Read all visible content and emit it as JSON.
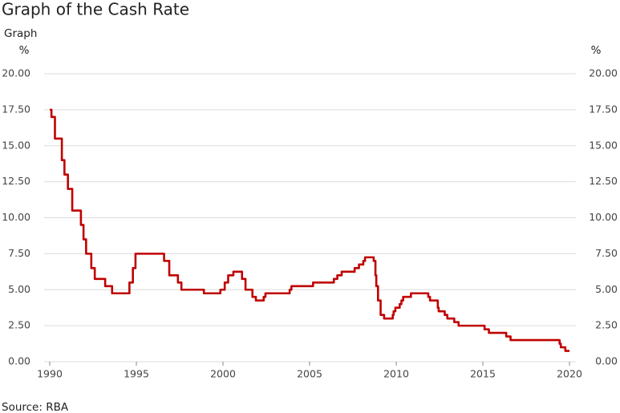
{
  "chart_data": {
    "type": "line",
    "title": "Graph of the Cash Rate",
    "subtitle": "Graph",
    "y_unit": "%",
    "y2_unit": "%",
    "source": "Source: RBA",
    "x": [
      1990,
      1990.1,
      1990.1,
      1990.3,
      1990.3,
      1990.7,
      1990.7,
      1990.85,
      1990.85,
      1991.05,
      1991.05,
      1991.3,
      1991.3,
      1991.8,
      1991.8,
      1991.95,
      1991.95,
      1992.1,
      1992.1,
      1992.4,
      1992.4,
      1992.6,
      1992.6,
      1993.2,
      1993.2,
      1993.6,
      1993.6,
      1994.6,
      1994.6,
      1994.8,
      1994.8,
      1994.95,
      1994.95,
      1996.6,
      1996.6,
      1996.9,
      1996.9,
      1997.4,
      1997.4,
      1997.6,
      1997.6,
      1998.9,
      1998.9,
      1999.85,
      1999.85,
      2000.1,
      2000.1,
      2000.3,
      2000.3,
      2000.6,
      2000.6,
      2001.1,
      2001.1,
      2001.3,
      2001.3,
      2001.7,
      2001.7,
      2001.9,
      2001.9,
      2002.35,
      2002.35,
      2002.45,
      2002.45,
      2003.85,
      2003.85,
      2003.95,
      2003.95,
      2005.2,
      2005.2,
      2006.4,
      2006.4,
      2006.6,
      2006.6,
      2006.85,
      2006.85,
      2007.6,
      2007.6,
      2007.85,
      2007.85,
      2008.1,
      2008.1,
      2008.2,
      2008.2,
      2008.7,
      2008.7,
      2008.8,
      2008.8,
      2008.85,
      2008.85,
      2008.95,
      2008.95,
      2009.1,
      2009.1,
      2009.3,
      2009.3,
      2009.8,
      2009.8,
      2009.85,
      2009.85,
      2009.95,
      2009.95,
      2010.2,
      2010.2,
      2010.3,
      2010.3,
      2010.4,
      2010.4,
      2010.85,
      2010.85,
      2011.85,
      2011.85,
      2011.95,
      2011.95,
      2012.4,
      2012.4,
      2012.45,
      2012.45,
      2012.8,
      2012.8,
      2012.95,
      2012.95,
      2013.35,
      2013.35,
      2013.6,
      2013.6,
      2015.1,
      2015.1,
      2015.35,
      2015.35,
      2016.35,
      2016.35,
      2016.6,
      2016.6,
      2019.43,
      2019.43,
      2019.5,
      2019.5,
      2019.76,
      2019.76,
      2020
    ],
    "values": [
      17.5,
      17.5,
      17,
      17,
      15.5,
      15.5,
      14,
      14,
      13,
      13,
      12,
      12,
      10.5,
      10.5,
      9.5,
      9.5,
      8.5,
      8.5,
      7.5,
      7.5,
      6.5,
      6.5,
      5.75,
      5.75,
      5.25,
      5.25,
      4.75,
      4.75,
      5.5,
      5.5,
      6.5,
      6.5,
      7.5,
      7.5,
      7,
      7,
      6,
      6,
      5.5,
      5.5,
      5,
      5,
      4.75,
      4.75,
      5,
      5,
      5.5,
      5.5,
      6,
      6,
      6.25,
      6.25,
      5.75,
      5.75,
      5,
      5,
      4.5,
      4.5,
      4.25,
      4.25,
      4.5,
      4.5,
      4.75,
      4.75,
      5,
      5,
      5.25,
      5.25,
      5.5,
      5.5,
      5.75,
      5.75,
      6,
      6,
      6.25,
      6.25,
      6.5,
      6.5,
      6.75,
      6.75,
      7,
      7,
      7.25,
      7.25,
      7,
      7,
      6,
      6,
      5.25,
      5.25,
      4.25,
      4.25,
      3.25,
      3.25,
      3,
      3,
      3.25,
      3.25,
      3.5,
      3.5,
      3.75,
      3.75,
      4,
      4,
      4.25,
      4.25,
      4.5,
      4.5,
      4.75,
      4.75,
      4.5,
      4.5,
      4.25,
      4.25,
      3.75,
      3.75,
      3.5,
      3.5,
      3.25,
      3.25,
      3,
      3,
      2.75,
      2.75,
      2.5,
      2.5,
      2.25,
      2.25,
      2,
      2,
      1.75,
      1.75,
      1.5,
      1.5,
      1.25,
      1.25,
      1,
      1,
      0.75,
      0.75
    ],
    "color": "#c00000",
    "xlim": [
      1990,
      2020
    ],
    "xticks": [
      1990,
      1995,
      2000,
      2005,
      2010,
      2015,
      2020
    ],
    "ylim": [
      0,
      20
    ],
    "yticks": [
      {
        "value": 0,
        "label": "0.00"
      },
      {
        "value": 2.5,
        "label": "2.50"
      },
      {
        "value": 5,
        "label": "5.00"
      },
      {
        "value": 7.5,
        "label": "7.50"
      },
      {
        "value": 10,
        "label": "10.00"
      },
      {
        "value": 12.5,
        "label": "12.50"
      },
      {
        "value": 15,
        "label": "15.00"
      },
      {
        "value": 17.5,
        "label": "17.50"
      },
      {
        "value": 20,
        "label": "20.00"
      }
    ],
    "y2lim": [
      0,
      20
    ],
    "y2ticks": [
      {
        "value": 0,
        "label": "0.00"
      },
      {
        "value": 2.5,
        "label": "2.50"
      },
      {
        "value": 5,
        "label": "5.00"
      },
      {
        "value": 7.5,
        "label": "7.50"
      },
      {
        "value": 10,
        "label": "10.00"
      },
      {
        "value": 12.5,
        "label": "12.50"
      },
      {
        "value": 15,
        "label": "15.00"
      },
      {
        "value": 17.5,
        "label": "17.50"
      },
      {
        "value": 20,
        "label": "20.00"
      }
    ],
    "grid": true
  }
}
